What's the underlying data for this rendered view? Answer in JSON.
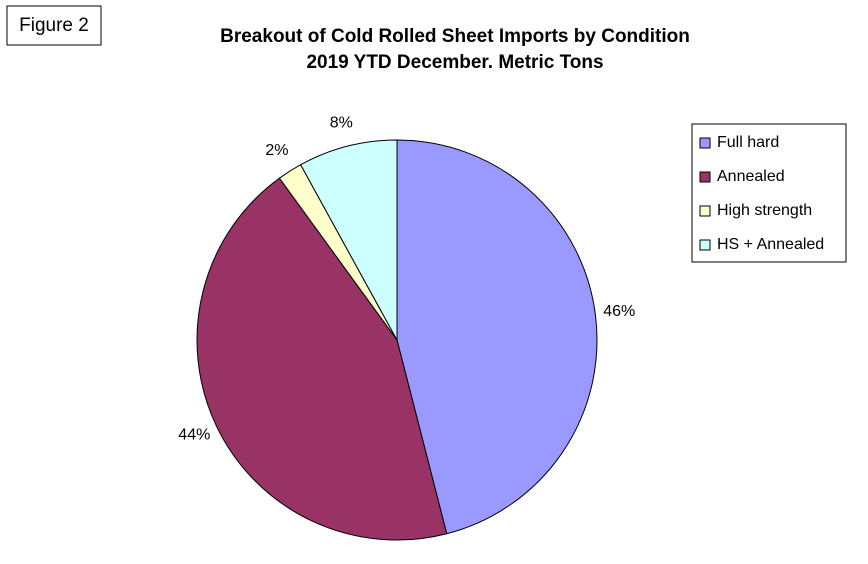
{
  "chart_data": {
    "type": "pie",
    "figure_label": "Figure 2",
    "title": "Breakout of Cold Rolled Sheet Imports by Condition",
    "subtitle": "2019 YTD December. Metric Tons",
    "categories": [
      "Full hard",
      "Annealed",
      "High strength",
      "HS + Annealed"
    ],
    "values": [
      46,
      44,
      2,
      8
    ],
    "value_labels": [
      "46%",
      "44%",
      "2%",
      "8%"
    ],
    "colors": [
      "#9999ff",
      "#993366",
      "#ffffcc",
      "#ccffff"
    ],
    "legend": "right"
  }
}
